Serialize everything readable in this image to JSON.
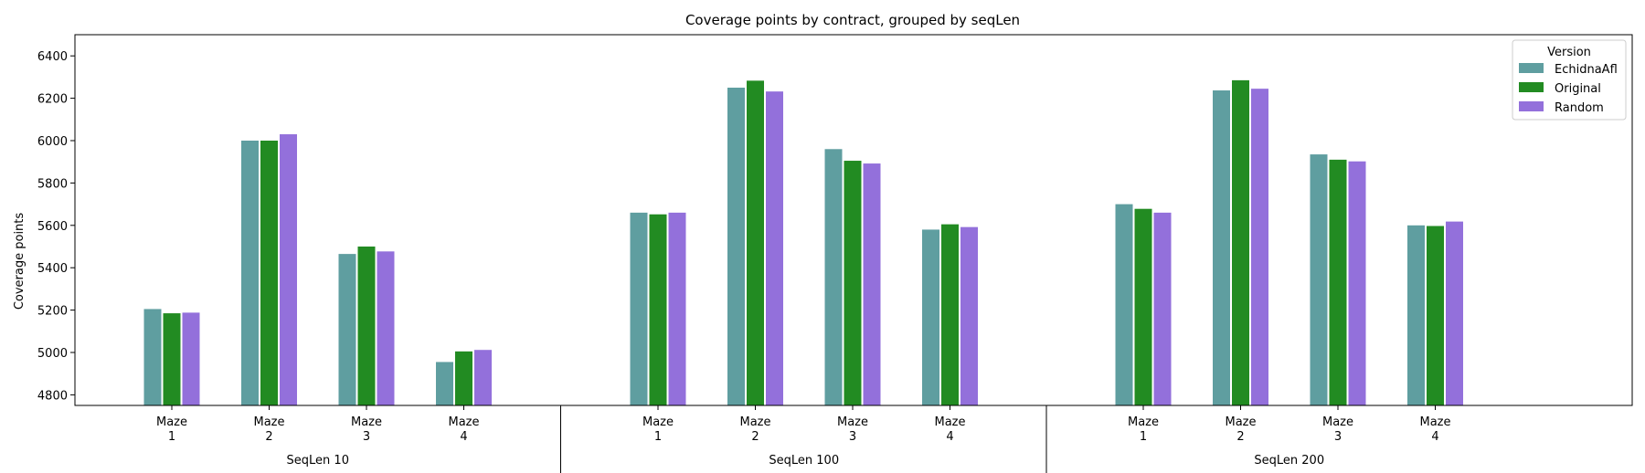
{
  "chart_data": {
    "type": "bar",
    "title": "Coverage points by contract, grouped by seqLen",
    "ylabel": "Coverage points",
    "xlabel": "",
    "ylim": [
      4750,
      6500
    ],
    "yticks": [
      4800,
      5000,
      5200,
      5400,
      5600,
      5800,
      6000,
      6200,
      6400
    ],
    "legend": {
      "title": "Version",
      "placement": "top-right"
    },
    "groups": [
      "SeqLen 10",
      "SeqLen 100",
      "SeqLen 200"
    ],
    "categories": [
      [
        "Maze",
        "1"
      ],
      [
        "Maze",
        "2"
      ],
      [
        "Maze",
        "3"
      ],
      [
        "Maze",
        "4"
      ]
    ],
    "series": [
      {
        "name": "EchidnaAfl",
        "color": "#5f9ea0",
        "values": [
          [
            5205,
            6000,
            5465,
            4955
          ],
          [
            5660,
            6250,
            5960,
            5580
          ],
          [
            5700,
            6237,
            5935,
            5600
          ]
        ]
      },
      {
        "name": "Original",
        "color": "#228b22",
        "values": [
          [
            5185,
            6000,
            5500,
            5005
          ],
          [
            5652,
            6283,
            5905,
            5605
          ],
          [
            5678,
            6285,
            5910,
            5597
          ]
        ]
      },
      {
        "name": "Random",
        "color": "#9370db",
        "values": [
          [
            5188,
            6030,
            5477,
            5012
          ],
          [
            5660,
            6232,
            5892,
            5592
          ],
          [
            5660,
            6245,
            5902,
            5618
          ]
        ]
      }
    ],
    "grid": false
  }
}
